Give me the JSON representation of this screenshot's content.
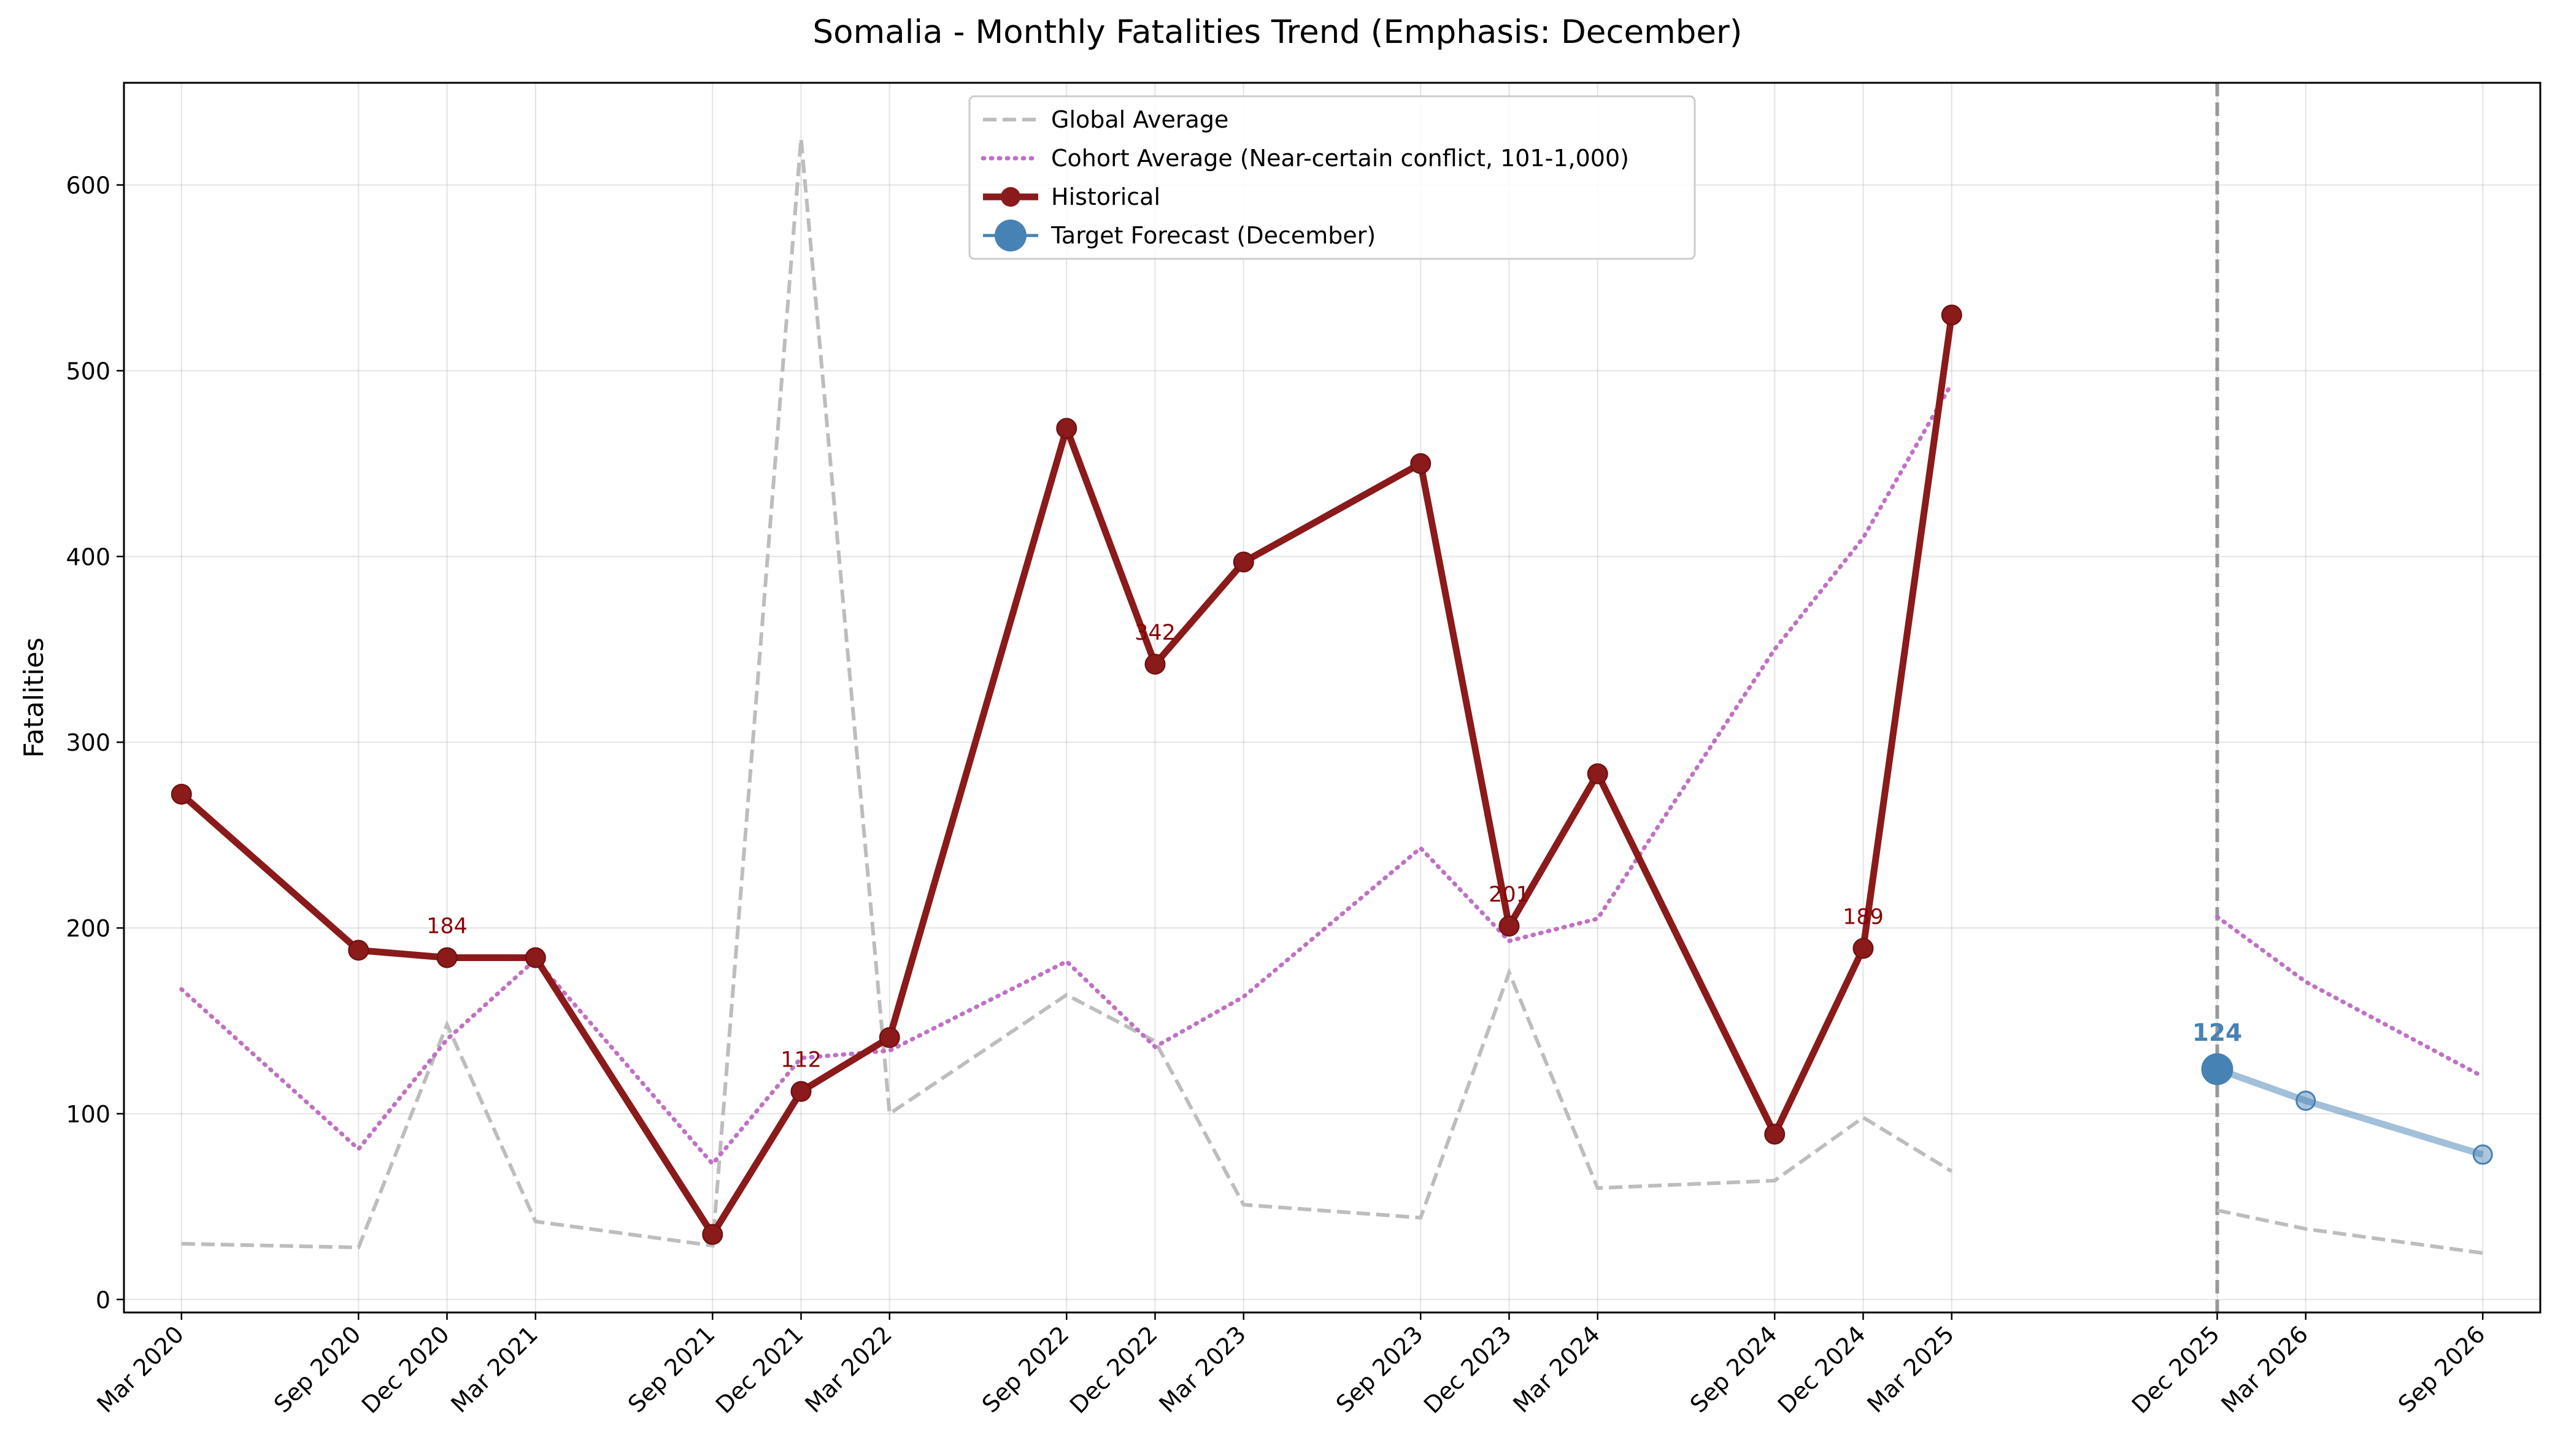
{
  "chart_data": {
    "type": "line",
    "title": "Somalia - Monthly Fatalities Trend (Emphasis: December)",
    "xlabel": "",
    "ylabel": "Fatalities",
    "ylim": [
      -7,
      655
    ],
    "y_ticks": [
      0,
      100,
      200,
      300,
      400,
      500,
      600
    ],
    "x_ticks": [
      "Mar 2020",
      "Sep 2020",
      "Dec 2020",
      "Mar 2021",
      "Sep 2021",
      "Dec 2021",
      "Mar 2022",
      "Sep 2022",
      "Dec 2022",
      "Mar 2023",
      "Sep 2023",
      "Dec 2023",
      "Mar 2024",
      "Sep 2024",
      "Dec 2024",
      "Mar 2025",
      "Dec 2025",
      "Mar 2026",
      "Sep 2026"
    ],
    "grid": true,
    "legend_position": "upper center",
    "forecast_divider": "Dec 2025",
    "series": [
      {
        "name": "Global Average",
        "style": "dashed",
        "color": "#bdbdbd",
        "x": [
          "Mar 2020",
          "Sep 2020",
          "Dec 2020",
          "Mar 2021",
          "Sep 2021",
          "Dec 2021",
          "Mar 2022",
          "Sep 2022",
          "Dec 2022",
          "Mar 2023",
          "Sep 2023",
          "Dec 2023",
          "Mar 2024",
          "Sep 2024",
          "Dec 2024",
          "Mar 2025"
        ],
        "values": [
          30,
          28,
          148,
          42,
          29,
          625,
          100,
          164,
          139,
          51,
          44,
          176,
          60,
          64,
          98,
          69
        ]
      },
      {
        "name": "Cohort Average (Near-certain conflict, 101-1,000)",
        "style": "dotted",
        "color": "#c071c4",
        "x": [
          "Mar 2020",
          "Sep 2020",
          "Dec 2020",
          "Mar 2021",
          "Sep 2021",
          "Dec 2021",
          "Mar 2022",
          "Sep 2022",
          "Dec 2022",
          "Mar 2023",
          "Sep 2023",
          "Dec 2023",
          "Mar 2024",
          "Sep 2024",
          "Dec 2024",
          "Mar 2025"
        ],
        "values": [
          167,
          81,
          140,
          183,
          73,
          130,
          134,
          182,
          136,
          163,
          243,
          193,
          205,
          350,
          410,
          493
        ]
      },
      {
        "name": "Historical",
        "style": "solid-markers",
        "color": "#8b1a1a",
        "x": [
          "Mar 2020",
          "Sep 2020",
          "Dec 2020",
          "Mar 2021",
          "Sep 2021",
          "Dec 2021",
          "Mar 2022",
          "Sep 2022",
          "Dec 2022",
          "Mar 2023",
          "Sep 2023",
          "Dec 2023",
          "Mar 2024",
          "Sep 2024",
          "Dec 2024",
          "Mar 2025"
        ],
        "values": [
          272,
          188,
          184,
          184,
          35,
          112,
          141,
          469,
          342,
          397,
          450,
          201,
          283,
          89,
          189,
          530
        ]
      },
      {
        "name": "Target Forecast (December)",
        "style": "forecast",
        "color": "#4682b4",
        "x": [
          "Dec 2025"
        ],
        "values": [
          124
        ]
      }
    ],
    "forecast_extras": {
      "forecast_line": {
        "x": [
          "Dec 2025",
          "Mar 2026",
          "Sep 2026"
        ],
        "values": [
          124,
          107,
          78
        ]
      },
      "global_forecast": {
        "x": [
          "Dec 2025",
          "Mar 2026",
          "Sep 2026"
        ],
        "values": [
          48,
          38,
          25
        ]
      },
      "cohort_forecast": {
        "x": [
          "Dec 2025",
          "Mar 2026",
          "Sep 2026"
        ],
        "values": [
          206,
          171,
          120
        ]
      }
    },
    "annotations": [
      {
        "x": "Dec 2020",
        "text": "184"
      },
      {
        "x": "Dec 2021",
        "text": "112"
      },
      {
        "x": "Dec 2022",
        "text": "342"
      },
      {
        "x": "Dec 2023",
        "text": "201"
      },
      {
        "x": "Dec 2024",
        "text": "189"
      }
    ],
    "forecast_label": {
      "x": "Dec 2025",
      "text": "124"
    }
  }
}
